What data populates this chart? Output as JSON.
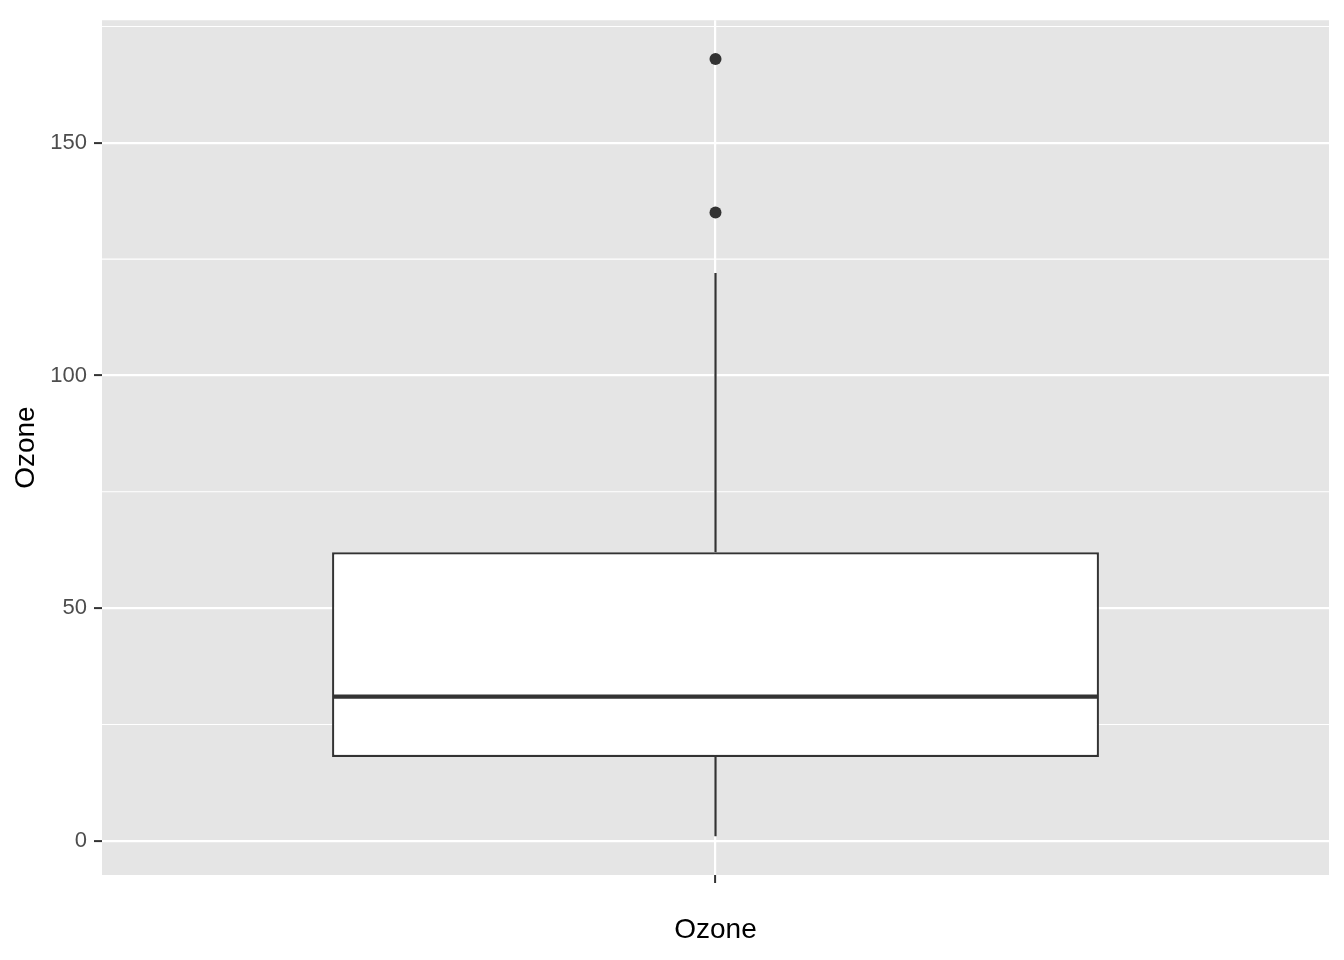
{
  "chart_data": {
    "type": "box",
    "categories": [
      null
    ],
    "xlabel": "Ozone",
    "ylabel": "Ozone",
    "color": "#333333",
    "boxes": [
      {
        "low": 1,
        "q1": 18,
        "median": 31,
        "q3": 62,
        "high": 122,
        "outliers": [
          135,
          168
        ]
      }
    ],
    "ylim": [
      -7.35,
      176.35
    ],
    "yticks": [
      0,
      50,
      100,
      150
    ],
    "grid": true
  }
}
